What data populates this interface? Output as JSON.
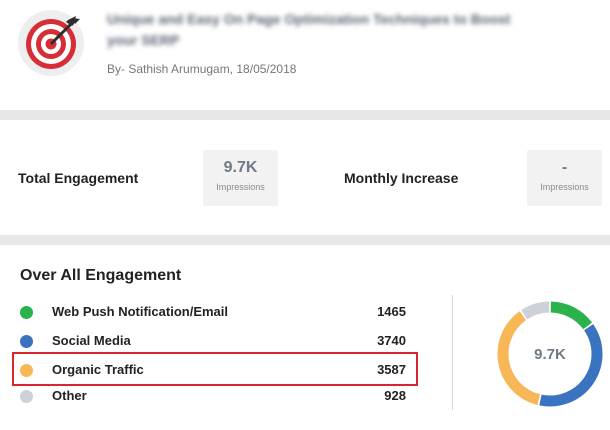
{
  "post": {
    "title": "Unique and Easy On Page Optimization Techniques to Boost your SERP",
    "byline": "By- Sathish Arumugam, 18/05/2018",
    "logo_icon": "target-dart-icon"
  },
  "stats": {
    "total_label": "Total Engagement",
    "total_value": "9.7K",
    "total_sub": "Impressions",
    "monthly_label": "Monthly Increase",
    "monthly_value": "-",
    "monthly_sub": "Impressions"
  },
  "engagement": {
    "title": "Over All Engagement",
    "center_label": "9.7K",
    "items": [
      {
        "label": "Web Push Notification/Email",
        "value": "1465",
        "color": "#2ab24b"
      },
      {
        "label": "Social Media",
        "value": "3740",
        "color": "#3a73bf"
      },
      {
        "label": "Organic Traffic",
        "value": "3587",
        "color": "#f7b757"
      },
      {
        "label": "Other",
        "value": "928",
        "color": "#cdd1d8"
      }
    ]
  }
}
